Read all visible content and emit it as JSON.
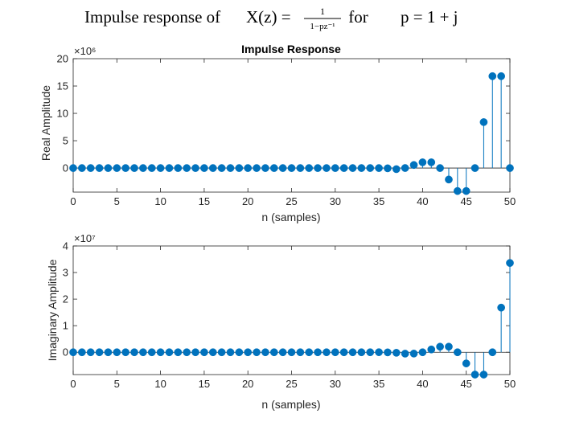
{
  "suptitle": {
    "prefix": "Impulse response of ",
    "lhs": "X(z) = ",
    "numerator": "1",
    "denominator": "1−pz⁻¹",
    "middle": " for ",
    "condition": "p = 1 + j"
  },
  "colors": {
    "stem": "#0072BD",
    "axis": "#262626",
    "baseline": "#262626"
  },
  "chart_data": [
    {
      "type": "stem",
      "title": "Impulse Response",
      "xlabel": "n (samples)",
      "ylabel": "Real Amplitude",
      "exponent_label": "×10⁶",
      "scale": 1000000,
      "xlim": [
        0,
        50
      ],
      "ylim": [
        -4.4,
        20
      ],
      "xticks": [
        0,
        5,
        10,
        15,
        20,
        25,
        30,
        35,
        40,
        45,
        50
      ],
      "yticks": [
        0,
        5,
        10,
        15,
        20
      ],
      "x": [
        0,
        1,
        2,
        3,
        4,
        5,
        6,
        7,
        8,
        9,
        10,
        11,
        12,
        13,
        14,
        15,
        16,
        17,
        18,
        19,
        20,
        21,
        22,
        23,
        24,
        25,
        26,
        27,
        28,
        29,
        30,
        31,
        32,
        33,
        34,
        35,
        36,
        37,
        38,
        39,
        40,
        41,
        42,
        43,
        44,
        45,
        46,
        47,
        48,
        49,
        50
      ],
      "values": [
        0,
        0,
        0,
        0,
        0,
        0,
        0,
        0,
        0,
        0,
        0,
        0,
        0,
        0,
        0,
        0,
        0,
        0,
        0,
        0,
        0,
        0,
        0,
        0,
        0,
        0,
        0,
        0,
        0,
        0,
        0,
        0,
        0.001,
        0.002,
        0.002,
        -0.002,
        -0.05,
        -0.2,
        0.005,
        0.56,
        1.05,
        1.05,
        0,
        -2.1,
        -4.2,
        -4.2,
        0,
        8.4,
        16.8,
        16.8,
        0
      ]
    },
    {
      "type": "stem",
      "title": "",
      "xlabel": "n (samples)",
      "ylabel": "Imaginary Amplitude",
      "exponent_label": "×10⁷",
      "scale": 10000000,
      "xlim": [
        0,
        50
      ],
      "ylim": [
        -0.84,
        4
      ],
      "xticks": [
        0,
        5,
        10,
        15,
        20,
        25,
        30,
        35,
        40,
        45,
        50
      ],
      "yticks": [
        0,
        1,
        2,
        3,
        4
      ],
      "x": [
        0,
        1,
        2,
        3,
        4,
        5,
        6,
        7,
        8,
        9,
        10,
        11,
        12,
        13,
        14,
        15,
        16,
        17,
        18,
        19,
        20,
        21,
        22,
        23,
        24,
        25,
        26,
        27,
        28,
        29,
        30,
        31,
        32,
        33,
        34,
        35,
        36,
        37,
        38,
        39,
        40,
        41,
        42,
        43,
        44,
        45,
        46,
        47,
        48,
        49,
        50
      ],
      "values": [
        0,
        0,
        0,
        0,
        0,
        0,
        0,
        0,
        0,
        0,
        0,
        0,
        0,
        0,
        0,
        0,
        0,
        0,
        0,
        0,
        0,
        0,
        0,
        0,
        0,
        0,
        0,
        0,
        0,
        0,
        0,
        0,
        0,
        0,
        0,
        0.002,
        -0.005,
        -0.02,
        -0.052,
        -0.05,
        0,
        0.105,
        0.21,
        0.21,
        0,
        -0.42,
        -0.84,
        -0.84,
        0,
        1.68,
        3.36
      ]
    }
  ]
}
